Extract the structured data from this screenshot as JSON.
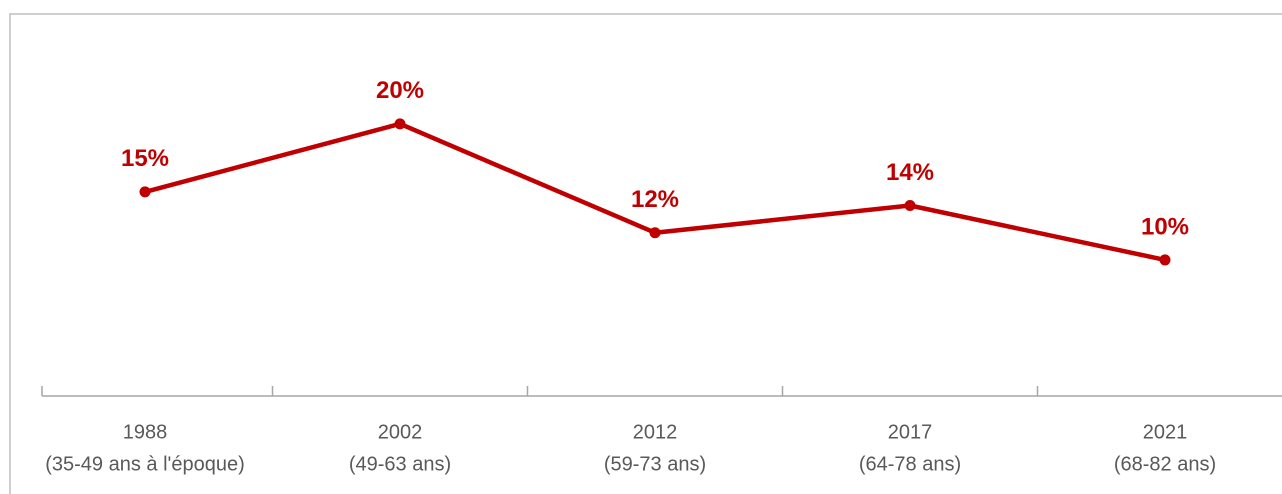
{
  "chart_data": {
    "type": "line",
    "categories": [
      "1988",
      "2002",
      "2012",
      "2017",
      "2021"
    ],
    "category_notes": [
      "(35-49 ans à l'époque)",
      "(49-63 ans)",
      "(59-73 ans)",
      "(64-78 ans)",
      "(68-82 ans)"
    ],
    "series": [
      {
        "color": "#c00000",
        "values": [
          15,
          20,
          12,
          14,
          10
        ],
        "value_labels": [
          "15%",
          "20%",
          "12%",
          "14%",
          "10%"
        ]
      }
    ],
    "ylim": [
      0,
      28
    ]
  }
}
